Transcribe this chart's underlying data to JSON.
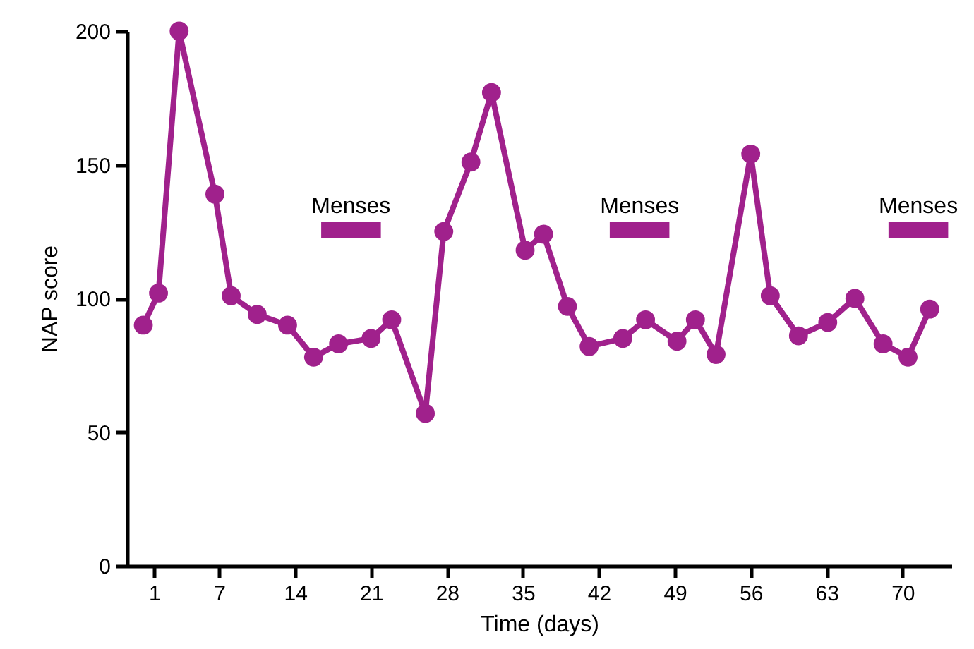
{
  "chart_data": {
    "type": "line",
    "xlabel": "Time (days)",
    "ylabel": "NAP score",
    "series": [
      {
        "color": "#a0218c",
        "marker": "circle",
        "x": [
          0,
          1.4,
          3.3,
          6.6,
          8.1,
          10.5,
          13.3,
          15.7,
          18,
          21,
          22.9,
          26,
          27.7,
          30.2,
          32.1,
          35.2,
          36.9,
          39.1,
          41.1,
          44.2,
          46.3,
          49.2,
          50.9,
          52.8,
          56,
          57.8,
          60.4,
          63.1,
          65.6,
          68.2,
          70.5,
          72.5
        ],
        "values": [
          90,
          102,
          200,
          139,
          101,
          94,
          90,
          78,
          83,
          85,
          92,
          57,
          125,
          151,
          177,
          118,
          124,
          97,
          82,
          85,
          92,
          84,
          92,
          79,
          154,
          101,
          86,
          91,
          100,
          83,
          78,
          96
        ]
      },
      {
        "name": "Menses",
        "color": "#a0218c",
        "marker": "none",
        "x": [
          16.4,
          21.9
        ],
        "values": [
          125.6,
          125.6
        ]
      },
      {
        "name": "Menses",
        "color": "#a0218c",
        "marker": "none",
        "x": [
          43,
          48.5
        ],
        "values": [
          125.6,
          125.6
        ]
      },
      {
        "name": "Menses",
        "color": "#a0218c",
        "marker": "none",
        "x": [
          68.7,
          74.2
        ],
        "values": [
          125.6,
          125.6
        ]
      }
    ],
    "line_style": "solid",
    "grid": false,
    "xlim": [
      -1.5,
      74.5
    ],
    "xticks": [
      1,
      7,
      14,
      21,
      28,
      35,
      42,
      49,
      56,
      63,
      70
    ],
    "ylim": [
      0,
      200
    ],
    "yticks": [
      0,
      50,
      100,
      150,
      200
    ]
  }
}
